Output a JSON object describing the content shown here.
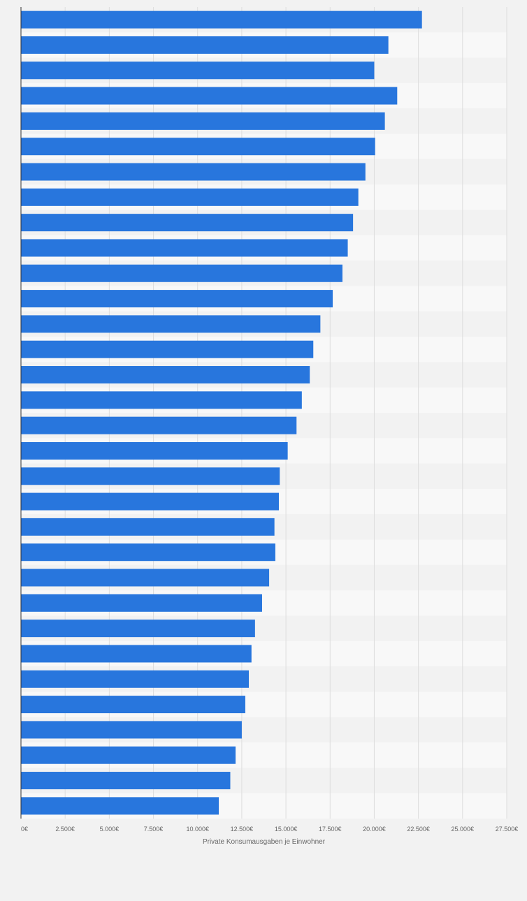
{
  "chart_data": {
    "type": "bar",
    "orientation": "horizontal",
    "xlabel": "Private Konsumausgaben je Einwohner",
    "xlim": [
      0,
      27500
    ],
    "x_ticks": [
      "0€",
      "2.500€",
      "5.000€",
      "7.500€",
      "10.000€",
      "12.500€",
      "15.000€",
      "17.500€",
      "20.000€",
      "22.500€",
      "25.000€",
      "27.500€"
    ],
    "grid": true,
    "series": [
      {
        "color": "#2876dd",
        "values": [
          22700,
          20800,
          20000,
          21300,
          20600,
          20050,
          19500,
          19100,
          18800,
          18500,
          18200,
          17650,
          16950,
          16550,
          16350,
          15900,
          15600,
          15100,
          14650,
          14600,
          14350,
          14400,
          14050,
          13650,
          13250,
          13050,
          12900,
          12700,
          12500,
          12150,
          11850,
          11200
        ]
      }
    ]
  }
}
